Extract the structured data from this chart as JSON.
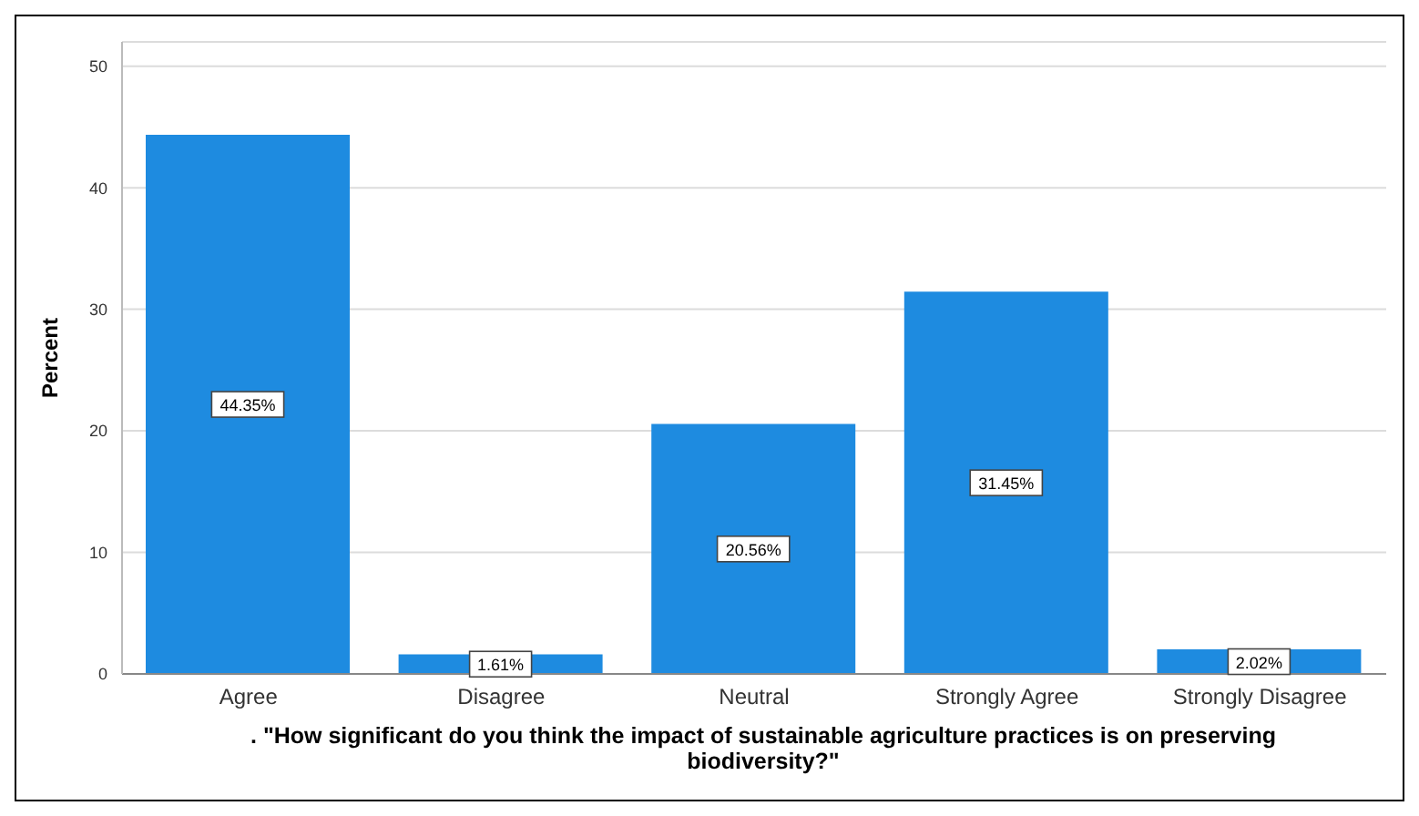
{
  "chart_data": {
    "type": "bar",
    "categories": [
      "Agree",
      "Disagree",
      "Neutral",
      "Strongly Agree",
      "Strongly Disagree"
    ],
    "values": [
      44.35,
      1.61,
      20.56,
      31.45,
      2.02
    ],
    "value_labels": [
      "44.35%",
      "1.61%",
      "20.56%",
      "31.45%",
      "2.02%"
    ],
    "color": "#1e8be0",
    "ylabel": "Percent",
    "xlabel": ". \"How significant do you think the impact of sustainable agriculture practices is on preserving biodiversity?\"",
    "ylim": [
      0,
      52
    ],
    "yticks": [
      0,
      10,
      20,
      30,
      40,
      50
    ],
    "grid": "y"
  }
}
